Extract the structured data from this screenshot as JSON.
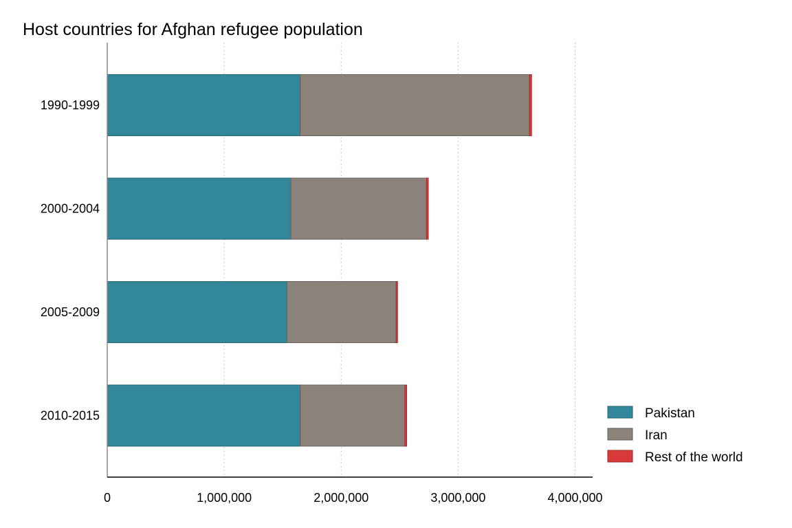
{
  "chart_data": {
    "type": "bar",
    "orientation": "horizontal",
    "stacked": true,
    "title": "Host countries for Afghan refugee population",
    "xlabel": "",
    "ylabel": "",
    "categories": [
      "1990-1999",
      "2000-2004",
      "2005-2009",
      "2010-2015"
    ],
    "series": [
      {
        "name": "Pakistan",
        "color": "#33879a",
        "values": [
          1650000,
          1570000,
          1535000,
          1650000
        ]
      },
      {
        "name": "Iran",
        "color": "#8b827a",
        "values": [
          1960000,
          1160000,
          935000,
          895000
        ]
      },
      {
        "name": "Rest of the world",
        "color": "#d83a3a",
        "values": [
          18000,
          15000,
          12000,
          15000
        ]
      }
    ],
    "xlim": [
      0,
      4150000
    ],
    "xticks": [
      0,
      1000000,
      2000000,
      3000000,
      4000000
    ],
    "xtick_labels": [
      "0",
      "1,000,000",
      "2,000,000",
      "3,000,000",
      "4,000,000"
    ],
    "grid": "vertical dotted",
    "legend_position": "bottom-right"
  }
}
